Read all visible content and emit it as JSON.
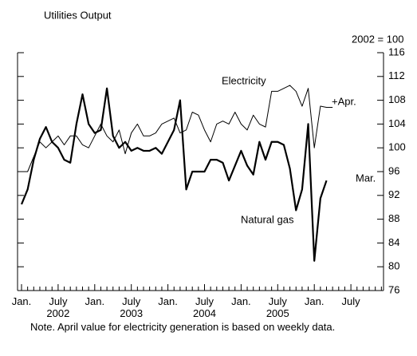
{
  "chart_data": {
    "type": "line",
    "title": "Utilities Output",
    "y_axis_label": "2002 = 100",
    "note": "Note. April value for electricity generation is based on weekly data.",
    "categories": [
      "Jan.",
      null,
      null,
      null,
      null,
      null,
      "July\n2002",
      null,
      null,
      null,
      null,
      null,
      "Jan.",
      null,
      null,
      null,
      null,
      null,
      "July\n2003",
      null,
      null,
      null,
      null,
      null,
      "Jan.",
      null,
      null,
      null,
      null,
      null,
      "July\n2004",
      null,
      null,
      null,
      null,
      null,
      "Jan.",
      null,
      null,
      null,
      null,
      null,
      "July\n2005",
      null,
      null,
      null,
      null,
      null,
      "Jan.",
      null,
      null,
      null,
      null,
      null,
      "July",
      null,
      null,
      null,
      null,
      null
    ],
    "series": [
      {
        "name": "Electricity",
        "color": "#000000",
        "linewidth": 1,
        "values": [
          96,
          96,
          98.5,
          101,
          100,
          101,
          102,
          100.5,
          102,
          102,
          100.5,
          100,
          102,
          104,
          102,
          101,
          103,
          99,
          102.5,
          104,
          102,
          102,
          102.5,
          104,
          104.5,
          105,
          102.5,
          103,
          106,
          105.5,
          103,
          101,
          104,
          104.5,
          104,
          106,
          104,
          103,
          105.5,
          104,
          103.5,
          109.5,
          109.5,
          110,
          110.5,
          109.5,
          107,
          110,
          100,
          107,
          106.8,
          106.8,
          null,
          null,
          null,
          null,
          null,
          null,
          null,
          null
        ]
      },
      {
        "name": "Natural gas",
        "color": "#000000",
        "linewidth": 2.2,
        "values": [
          90.5,
          93,
          98,
          101.5,
          103.5,
          101,
          100,
          98,
          97.5,
          104,
          109,
          104,
          102.5,
          103,
          110,
          102,
          100,
          101,
          99.5,
          100,
          99.5,
          99.5,
          100,
          99,
          101,
          103,
          108,
          93,
          96,
          96,
          96,
          98,
          98,
          97.5,
          94.5,
          97,
          99.5,
          97,
          95.5,
          101,
          98,
          101,
          101,
          100.5,
          96.5,
          89.5,
          93,
          104,
          81,
          91.5,
          94.5,
          null,
          null,
          null,
          null,
          null,
          null,
          null,
          null,
          null
        ]
      }
    ],
    "annotations": [
      "+Apr.",
      "Mar."
    ],
    "ylim": [
      76,
      116
    ],
    "yticks": [
      76,
      80,
      84,
      88,
      92,
      96,
      100,
      104,
      108,
      112,
      116
    ]
  }
}
